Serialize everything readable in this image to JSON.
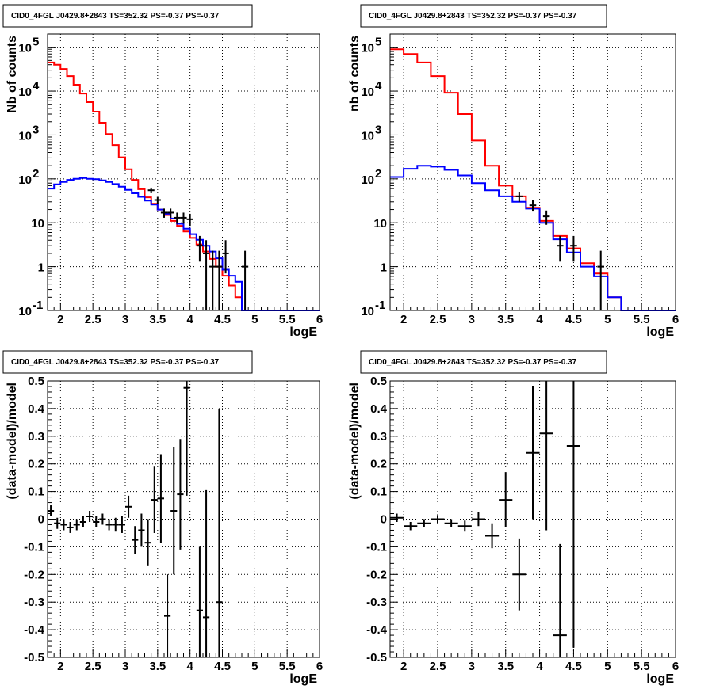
{
  "panel_title": "CID0_4FGL J0429.8+2843 TS=352.32 PS=-0.37 PS=-0.37",
  "colors": {
    "data": "#000000",
    "total_model": "#ff0000",
    "source_model": "#0000ff"
  },
  "chart_data": [
    {
      "type": "line",
      "title": "CID0_4FGL J0429.8+2843 TS=352.32 PS=-0.37 PS=-0.37",
      "xlabel": "logE",
      "ylabel": "Nb of counts",
      "xlim": [
        1.8,
        6
      ],
      "ylim": [
        0.1,
        200000
      ],
      "yscale": "log",
      "grid": true,
      "xticks": [
        "2",
        "2.5",
        "3",
        "3.5",
        "4",
        "4.5",
        "5",
        "5.5",
        "6"
      ],
      "yticks": [
        {
          "v": 0.1,
          "t": "10",
          "e": "-1"
        },
        {
          "v": 1,
          "t": "1",
          "e": ""
        },
        {
          "v": 10,
          "t": "10",
          "e": ""
        },
        {
          "v": 100,
          "t": "10",
          "e": "2"
        },
        {
          "v": 1000,
          "t": "10",
          "e": "3"
        },
        {
          "v": 10000,
          "t": "10",
          "e": "4"
        },
        {
          "v": 100000,
          "t": "10",
          "e": "5"
        }
      ],
      "bin_edges": [
        1.8,
        1.9,
        2.0,
        2.1,
        2.2,
        2.3,
        2.4,
        2.5,
        2.6,
        2.7,
        2.8,
        2.9,
        3.0,
        3.1,
        3.2,
        3.3,
        3.4,
        3.5,
        3.6,
        3.7,
        3.8,
        3.9,
        4.0,
        4.1,
        4.2,
        4.3,
        4.4,
        4.5,
        4.6,
        4.7,
        4.8,
        4.9,
        5.0,
        5.1,
        5.2,
        5.3,
        5.4,
        5.5,
        5.6,
        5.7,
        5.8,
        5.9,
        6.0
      ],
      "series": [
        {
          "key": "total_model",
          "values": [
            45000,
            40000,
            32000,
            22000,
            14000,
            8800,
            5600,
            3400,
            1900,
            1050,
            590,
            310,
            165,
            95,
            58,
            38,
            27,
            20,
            15,
            11,
            8.5,
            6.3,
            4.5,
            3.2,
            2.2,
            1.5,
            1.0,
            0.62,
            0.37,
            0.2,
            0.1,
            0.1,
            0.1,
            0.1,
            0.1,
            0.1,
            0.1,
            0.1,
            0.1,
            0.1,
            0.1,
            0.1
          ]
        },
        {
          "key": "source_model",
          "values": [
            60,
            75,
            85,
            95,
            100,
            105,
            100,
            98,
            92,
            85,
            76,
            66,
            56,
            47,
            39,
            32,
            26,
            20,
            16,
            12.5,
            9.5,
            7.3,
            5.5,
            4.1,
            3.0,
            2.2,
            1.55,
            0.85,
            0.62,
            0.45,
            0.1,
            0.1,
            0.1,
            0.1,
            0.1,
            0.1,
            0.1,
            0.1,
            0.1,
            0.1,
            0.1,
            0.1
          ]
        }
      ],
      "points": [
        {
          "x": 3.4,
          "y": 55,
          "lo": 47,
          "hi": 63
        },
        {
          "x": 3.5,
          "y": 33,
          "lo": 27,
          "hi": 39
        },
        {
          "x": 3.6,
          "y": 17,
          "lo": 13,
          "hi": 21
        },
        {
          "x": 3.7,
          "y": 17,
          "lo": 13,
          "hi": 21
        },
        {
          "x": 3.8,
          "y": 13,
          "lo": 9.5,
          "hi": 17
        },
        {
          "x": 3.9,
          "y": 13,
          "lo": 9.5,
          "hi": 17
        },
        {
          "x": 4.0,
          "y": 12,
          "lo": 8.5,
          "hi": 16
        },
        {
          "x": 4.15,
          "y": 3,
          "lo": 1.3,
          "hi": 5
        },
        {
          "x": 4.25,
          "y": 2,
          "lo": 0.1,
          "hi": 4
        },
        {
          "x": 4.35,
          "y": 1,
          "lo": 0.1,
          "hi": 2.3
        },
        {
          "x": 4.45,
          "y": 1,
          "lo": 0.1,
          "hi": 2.3
        },
        {
          "x": 4.55,
          "y": 2,
          "lo": 0.7,
          "hi": 4
        },
        {
          "x": 4.85,
          "y": 1,
          "lo": 0.1,
          "hi": 2.3
        }
      ]
    },
    {
      "type": "line",
      "title": "CID0_4FGL J0429.8+2843 TS=352.32 PS=-0.37 PS=-0.37",
      "xlabel": "logE",
      "ylabel": "nb of counts",
      "xlim": [
        1.8,
        6
      ],
      "ylim": [
        0.1,
        200000
      ],
      "yscale": "log",
      "grid": true,
      "xticks": [
        "2",
        "2.5",
        "3",
        "3.5",
        "4",
        "4.5",
        "5",
        "5.5",
        "6"
      ],
      "yticks": [
        {
          "v": 0.1,
          "t": "10",
          "e": "-1"
        },
        {
          "v": 1,
          "t": "1",
          "e": ""
        },
        {
          "v": 10,
          "t": "10",
          "e": ""
        },
        {
          "v": 100,
          "t": "10",
          "e": "2"
        },
        {
          "v": 1000,
          "t": "10",
          "e": "3"
        },
        {
          "v": 10000,
          "t": "10",
          "e": "4"
        },
        {
          "v": 100000,
          "t": "10",
          "e": "5"
        }
      ],
      "bin_edges": [
        1.8,
        2.0,
        2.2,
        2.4,
        2.6,
        2.8,
        3.0,
        3.2,
        3.4,
        3.6,
        3.8,
        4.0,
        4.2,
        4.4,
        4.6,
        4.8,
        5.0,
        5.2,
        5.4,
        5.6,
        5.8,
        6.0
      ],
      "series": [
        {
          "key": "total_model",
          "values": [
            90000,
            70000,
            45000,
            22000,
            9200,
            3000,
            750,
            200,
            70,
            40,
            22,
            11,
            5,
            2.6,
            1.2,
            0.7,
            0.2,
            0.1,
            0.1,
            0.1,
            0.1
          ]
        },
        {
          "key": "source_model",
          "values": [
            110,
            170,
            200,
            190,
            160,
            120,
            80,
            55,
            40,
            30,
            21,
            10,
            4.2,
            2.1,
            1.0,
            0.6,
            0.2,
            0.1,
            0.1,
            0.1,
            0.1
          ]
        }
      ],
      "points": [
        {
          "x": 3.7,
          "y": 40,
          "lo": 30,
          "hi": 50
        },
        {
          "x": 3.9,
          "y": 25,
          "lo": 18,
          "hi": 33
        },
        {
          "x": 4.1,
          "y": 14,
          "lo": 9,
          "hi": 19
        },
        {
          "x": 4.3,
          "y": 3,
          "lo": 1.3,
          "hi": 5
        },
        {
          "x": 4.5,
          "y": 3,
          "lo": 1.3,
          "hi": 5
        },
        {
          "x": 4.9,
          "y": 1,
          "lo": 0.1,
          "hi": 2.3
        }
      ]
    },
    {
      "type": "scatter",
      "title": "CID0_4FGL J0429.8+2843 TS=352.32 PS=-0.37 PS=-0.37",
      "xlabel": "logE",
      "ylabel": "(data-model)/model",
      "xlim": [
        1.8,
        6
      ],
      "ylim": [
        -0.5,
        0.5
      ],
      "grid": true,
      "xticks": [
        "2",
        "2.5",
        "3",
        "3.5",
        "4",
        "4.5",
        "5",
        "5.5",
        "6"
      ],
      "yticks": [
        "-0.5",
        "-0.4",
        "-0.3",
        "-0.2",
        "-0.1",
        "0",
        "0.1",
        "0.2",
        "0.3",
        "0.4",
        "0.5"
      ],
      "bin_width": 0.1,
      "points": [
        {
          "x": 1.85,
          "y": 0.03,
          "err": 0.02
        },
        {
          "x": 1.95,
          "y": -0.015,
          "err": 0.02
        },
        {
          "x": 2.05,
          "y": -0.02,
          "err": 0.02
        },
        {
          "x": 2.15,
          "y": -0.03,
          "err": 0.02
        },
        {
          "x": 2.25,
          "y": -0.02,
          "err": 0.02
        },
        {
          "x": 2.35,
          "y": -0.01,
          "err": 0.02
        },
        {
          "x": 2.45,
          "y": 0.01,
          "err": 0.02
        },
        {
          "x": 2.55,
          "y": -0.01,
          "err": 0.02
        },
        {
          "x": 2.65,
          "y": 0.0,
          "err": 0.02
        },
        {
          "x": 2.75,
          "y": -0.02,
          "err": 0.02
        },
        {
          "x": 2.85,
          "y": -0.02,
          "err": 0.025
        },
        {
          "x": 2.95,
          "y": -0.02,
          "err": 0.03
        },
        {
          "x": 3.05,
          "y": 0.045,
          "err": 0.04
        },
        {
          "x": 3.15,
          "y": -0.075,
          "err": 0.05
        },
        {
          "x": 3.25,
          "y": -0.04,
          "err": 0.06
        },
        {
          "x": 3.35,
          "y": -0.085,
          "err": 0.085
        },
        {
          "x": 3.45,
          "y": 0.07,
          "err": 0.12
        },
        {
          "x": 3.55,
          "y": 0.075,
          "err": 0.16
        },
        {
          "x": 3.65,
          "y": -0.35,
          "err": 0.15
        },
        {
          "x": 3.75,
          "y": 0.03,
          "err": 0.23
        },
        {
          "x": 3.85,
          "y": 0.09,
          "err": 0.2
        },
        {
          "x": 3.95,
          "y": 0.475,
          "err": 0.39
        },
        {
          "x": 4.15,
          "y": -0.33,
          "err": 0.23
        },
        {
          "x": 4.25,
          "y": -0.355,
          "err": 0.46
        },
        {
          "x": 4.45,
          "y": -0.3,
          "err": 0.7
        }
      ]
    },
    {
      "type": "scatter",
      "title": "CID0_4FGL J0429.8+2843 TS=352.32 PS=-0.37 PS=-0.37",
      "xlabel": "logE",
      "ylabel": "(data-model)/model",
      "xlim": [
        1.8,
        6
      ],
      "ylim": [
        -0.5,
        0.5
      ],
      "grid": true,
      "xticks": [
        "2",
        "2.5",
        "3",
        "3.5",
        "4",
        "4.5",
        "5",
        "5.5",
        "6"
      ],
      "yticks": [
        "-0.5",
        "-0.4",
        "-0.3",
        "-0.2",
        "-0.1",
        "0",
        "0.1",
        "0.2",
        "0.3",
        "0.4",
        "0.5"
      ],
      "bin_width": 0.2,
      "points": [
        {
          "x": 1.9,
          "y": 0.005,
          "err": 0.015
        },
        {
          "x": 2.1,
          "y": -0.025,
          "err": 0.015
        },
        {
          "x": 2.3,
          "y": -0.015,
          "err": 0.015
        },
        {
          "x": 2.5,
          "y": 0.0,
          "err": 0.015
        },
        {
          "x": 2.7,
          "y": -0.015,
          "err": 0.015
        },
        {
          "x": 2.9,
          "y": -0.025,
          "err": 0.02
        },
        {
          "x": 3.1,
          "y": 0.0,
          "err": 0.025
        },
        {
          "x": 3.3,
          "y": -0.06,
          "err": 0.045
        },
        {
          "x": 3.5,
          "y": 0.07,
          "err": 0.1
        },
        {
          "x": 3.7,
          "y": -0.2,
          "err": 0.13
        },
        {
          "x": 3.9,
          "y": 0.24,
          "err": 0.24
        },
        {
          "x": 4.1,
          "y": 0.31,
          "err": 0.35
        },
        {
          "x": 4.3,
          "y": -0.42,
          "err": 0.33
        },
        {
          "x": 4.5,
          "y": 0.265,
          "err": 0.73
        }
      ]
    }
  ]
}
